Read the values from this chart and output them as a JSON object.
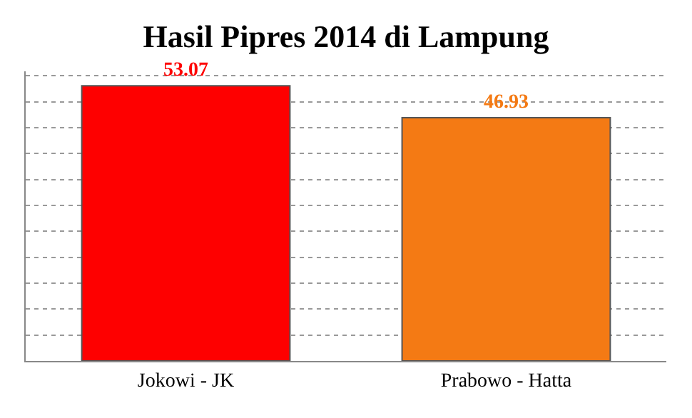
{
  "chart_data": {
    "type": "bar",
    "title": "Hasil Pipres 2014 di Lampung",
    "categories": [
      "Jokowi - JK",
      "Prabowo - Hatta"
    ],
    "values": [
      53.07,
      46.93
    ],
    "colors": [
      "#fe0000",
      "#f47a14"
    ],
    "data_labels": true,
    "grid": "y",
    "tick_labels": "x"
  }
}
